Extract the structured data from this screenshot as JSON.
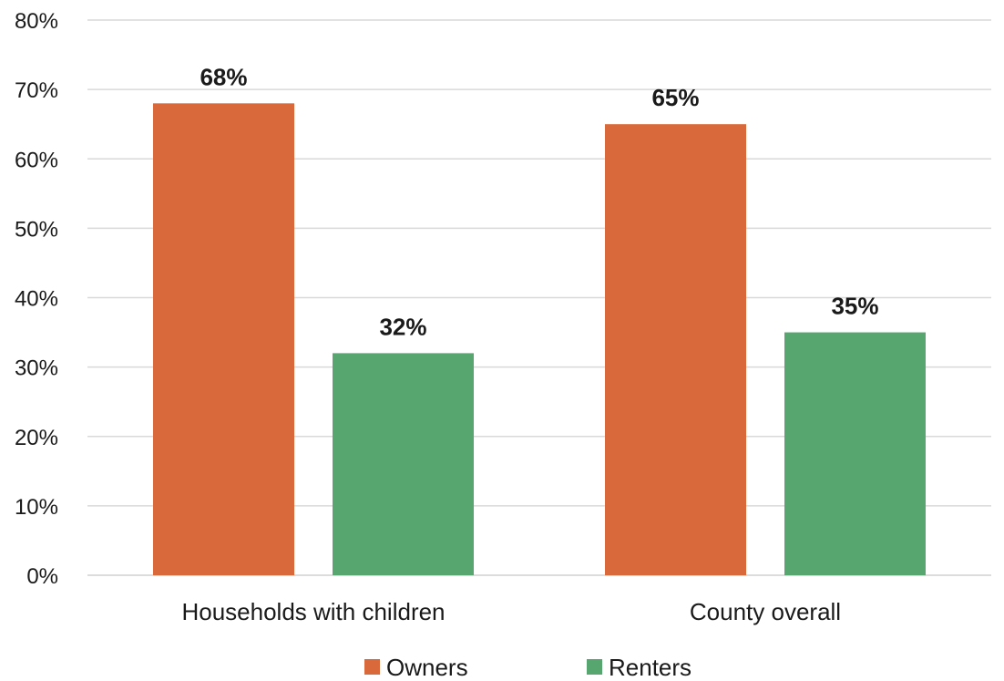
{
  "chart_data": {
    "type": "bar",
    "categories": [
      "Households with children",
      "County overall"
    ],
    "series": [
      {
        "name": "Owners",
        "values": [
          68,
          65
        ],
        "labels": [
          "68%",
          "65%"
        ],
        "color": "#d9693a"
      },
      {
        "name": "Renters",
        "values": [
          32,
          35
        ],
        "labels": [
          "32%",
          "35%"
        ],
        "color": "#58a66f"
      }
    ],
    "ylim": [
      0,
      80
    ],
    "yticks": [
      0,
      10,
      20,
      30,
      40,
      50,
      60,
      70,
      80
    ],
    "ytick_labels": [
      "0%",
      "10%",
      "20%",
      "30%",
      "40%",
      "50%",
      "60%",
      "70%",
      "80%"
    ],
    "grid": true,
    "legend_position": "bottom"
  }
}
